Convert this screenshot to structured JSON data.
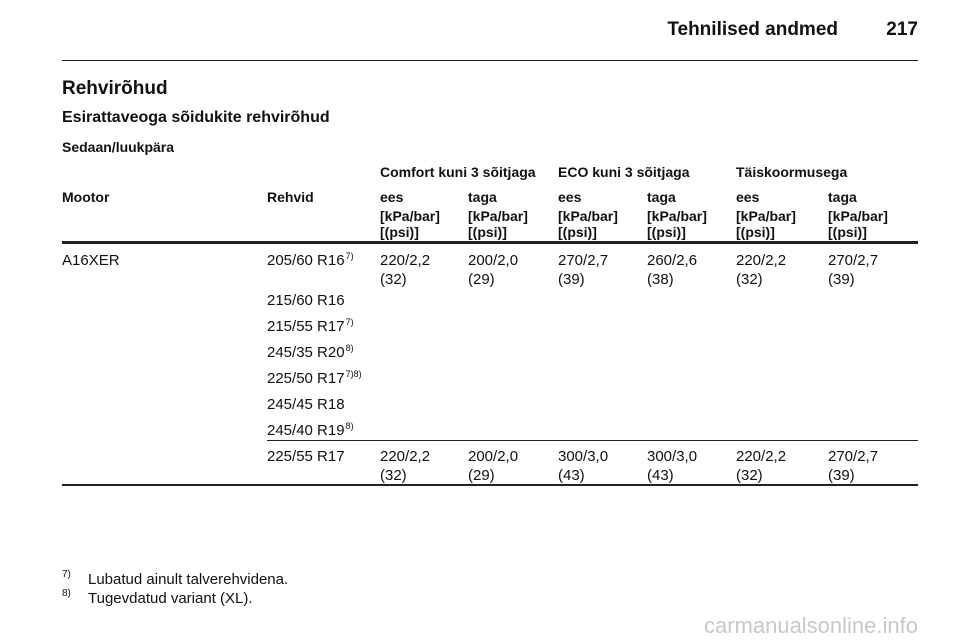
{
  "header": {
    "title": "Tehnilised andmed",
    "page": "217"
  },
  "section_title": "Rehvirõhud",
  "subsection_title": "Esirattaveoga sõidukite rehvirõhud",
  "table_caption": "Sedaan/luukpära",
  "table": {
    "group_headers": [
      "Comfort kuni 3 sõitjaga",
      "ECO kuni 3 sõitjaga",
      "Täiskoormusega"
    ],
    "columns": [
      "Mootor",
      "Rehvid",
      "ees",
      "taga",
      "ees",
      "taga",
      "ees",
      "taga"
    ],
    "units": [
      [
        "[kPa/bar]",
        "[(psi)]"
      ],
      [
        "[kPa/bar]",
        "[(psi)]"
      ],
      [
        "[kPa/bar]",
        "[(psi)]"
      ],
      [
        "[kPa/bar]",
        "[(psi)]"
      ],
      [
        "[kPa/bar]",
        "[(psi)]"
      ],
      [
        "[kPa/bar]",
        "[(psi)]"
      ]
    ],
    "rows": [
      {
        "engine": "A16XER",
        "groups": [
          {
            "tires": [
              {
                "size": "205/60 R16",
                "note": "7)"
              },
              {
                "size": "215/60 R16"
              },
              {
                "size": "215/55 R17",
                "note": "7)"
              },
              {
                "size": "245/35 R20",
                "note": "8)"
              },
              {
                "size": "225/50 R17",
                "note": "7)8)"
              },
              {
                "size": "245/45 R18"
              },
              {
                "size": "245/40 R19",
                "note": "8)"
              }
            ],
            "values": [
              [
                "220/2,2",
                "(32)"
              ],
              [
                "200/2,0",
                "(29)"
              ],
              [
                "270/2,7",
                "(39)"
              ],
              [
                "260/2,6",
                "(38)"
              ],
              [
                "220/2,2",
                "(32)"
              ],
              [
                "270/2,7",
                "(39)"
              ]
            ]
          },
          {
            "tires": [
              {
                "size": "225/55 R17"
              }
            ],
            "values": [
              [
                "220/2,2",
                "(32)"
              ],
              [
                "200/2,0",
                "(29)"
              ],
              [
                "300/3,0",
                "(43)"
              ],
              [
                "300/3,0",
                "(43)"
              ],
              [
                "220/2,2",
                "(32)"
              ],
              [
                "270/2,7",
                "(39)"
              ]
            ]
          }
        ]
      }
    ]
  },
  "footnotes": [
    {
      "mark": "7)",
      "text": "Lubatud ainult talverehvidena."
    },
    {
      "mark": "8)",
      "text": "Tugevdatud variant (XL)."
    }
  ],
  "watermark": "carmanualsonline.info"
}
